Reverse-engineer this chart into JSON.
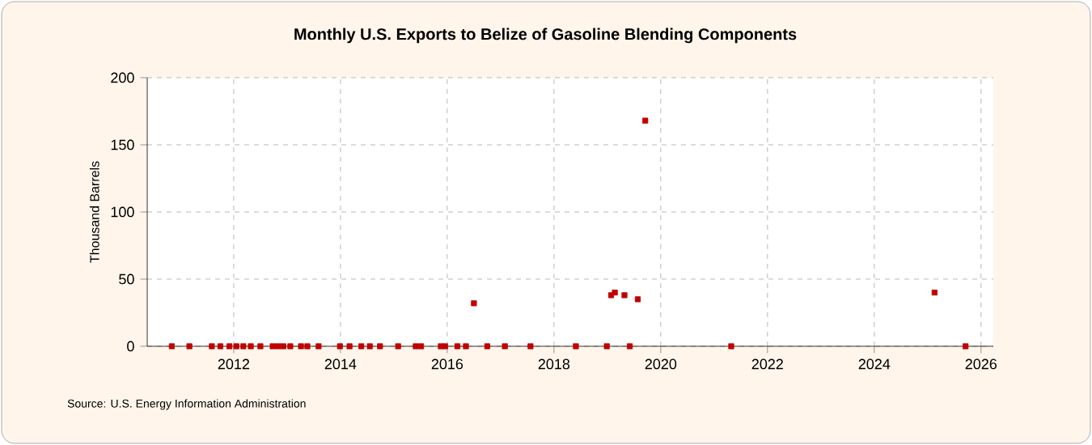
{
  "chart_data": {
    "type": "scatter",
    "title": "Monthly U.S. Exports to Belize of Gasoline Blending Components",
    "ylabel": "Thousand Barrels",
    "annotations": [
      "Source: U.S. Energy Information Administration"
    ],
    "x": [
      2010.84,
      2011.17,
      2011.59,
      2011.75,
      2011.92,
      2012.05,
      2012.18,
      2012.32,
      2012.5,
      2012.73,
      2012.83,
      2012.93,
      2013.06,
      2013.26,
      2013.38,
      2013.59,
      2013.99,
      2014.17,
      2014.39,
      2014.55,
      2014.74,
      2015.08,
      2015.41,
      2015.51,
      2015.88,
      2015.96,
      2016.19,
      2016.35,
      2016.5,
      2016.75,
      2017.08,
      2017.56,
      2018.41,
      2018.99,
      2019.07,
      2019.14,
      2019.32,
      2019.42,
      2019.57,
      2019.71,
      2021.32,
      2025.13,
      2025.71
    ],
    "values": [
      0,
      0,
      0,
      0,
      0,
      0,
      0,
      0,
      0,
      0,
      0,
      0,
      0,
      0,
      0,
      0,
      0,
      0,
      0,
      0,
      0,
      0,
      0,
      0,
      0,
      0,
      0,
      0,
      32,
      0,
      0,
      0,
      0,
      0,
      38,
      40,
      38,
      0,
      35,
      168,
      0,
      40,
      0
    ],
    "color": "#c00000",
    "marker": "square",
    "xlim": [
      2010.38,
      2026.23
    ],
    "xticks": [
      2012,
      2014,
      2016,
      2018,
      2020,
      2022,
      2024,
      2026
    ],
    "ylim": [
      0,
      200
    ],
    "yticks": [
      0,
      50,
      100,
      150,
      200
    ],
    "grid": true
  }
}
